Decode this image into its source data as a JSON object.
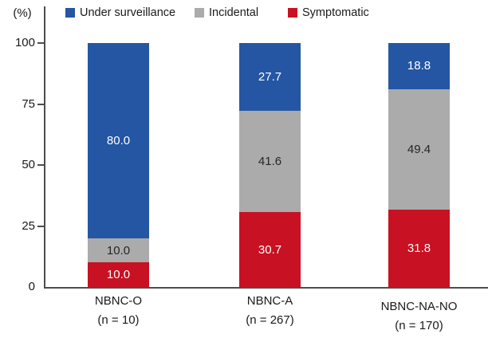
{
  "chart_data": {
    "type": "bar",
    "stacked": true,
    "ylabel": "(%)",
    "ylim": [
      0,
      100
    ],
    "yticks": [
      0,
      25,
      50,
      75,
      100
    ],
    "grid": false,
    "legend_position": "top",
    "categories": [
      "NBNC-O",
      "NBNC-A",
      "NBNC-NA-NO"
    ],
    "category_counts": [
      "(n = 10)",
      "(n = 267)",
      "(n = 170)"
    ],
    "series": [
      {
        "name": "Under surveillance",
        "color": "#2456a3",
        "text_color": "#ffffff",
        "values": [
          80.0,
          27.7,
          18.8
        ]
      },
      {
        "name": "Incidental",
        "color": "#ababab",
        "text_color": "#262626",
        "values": [
          10.0,
          41.6,
          49.4
        ]
      },
      {
        "name": "Symptomatic",
        "color": "#c81122",
        "text_color": "#ffffff",
        "values": [
          10.0,
          30.7,
          31.8
        ]
      }
    ],
    "value_format_decimals": 1
  },
  "colors": {
    "axis": "#4d4d4d",
    "text": "#1a1a1a"
  }
}
